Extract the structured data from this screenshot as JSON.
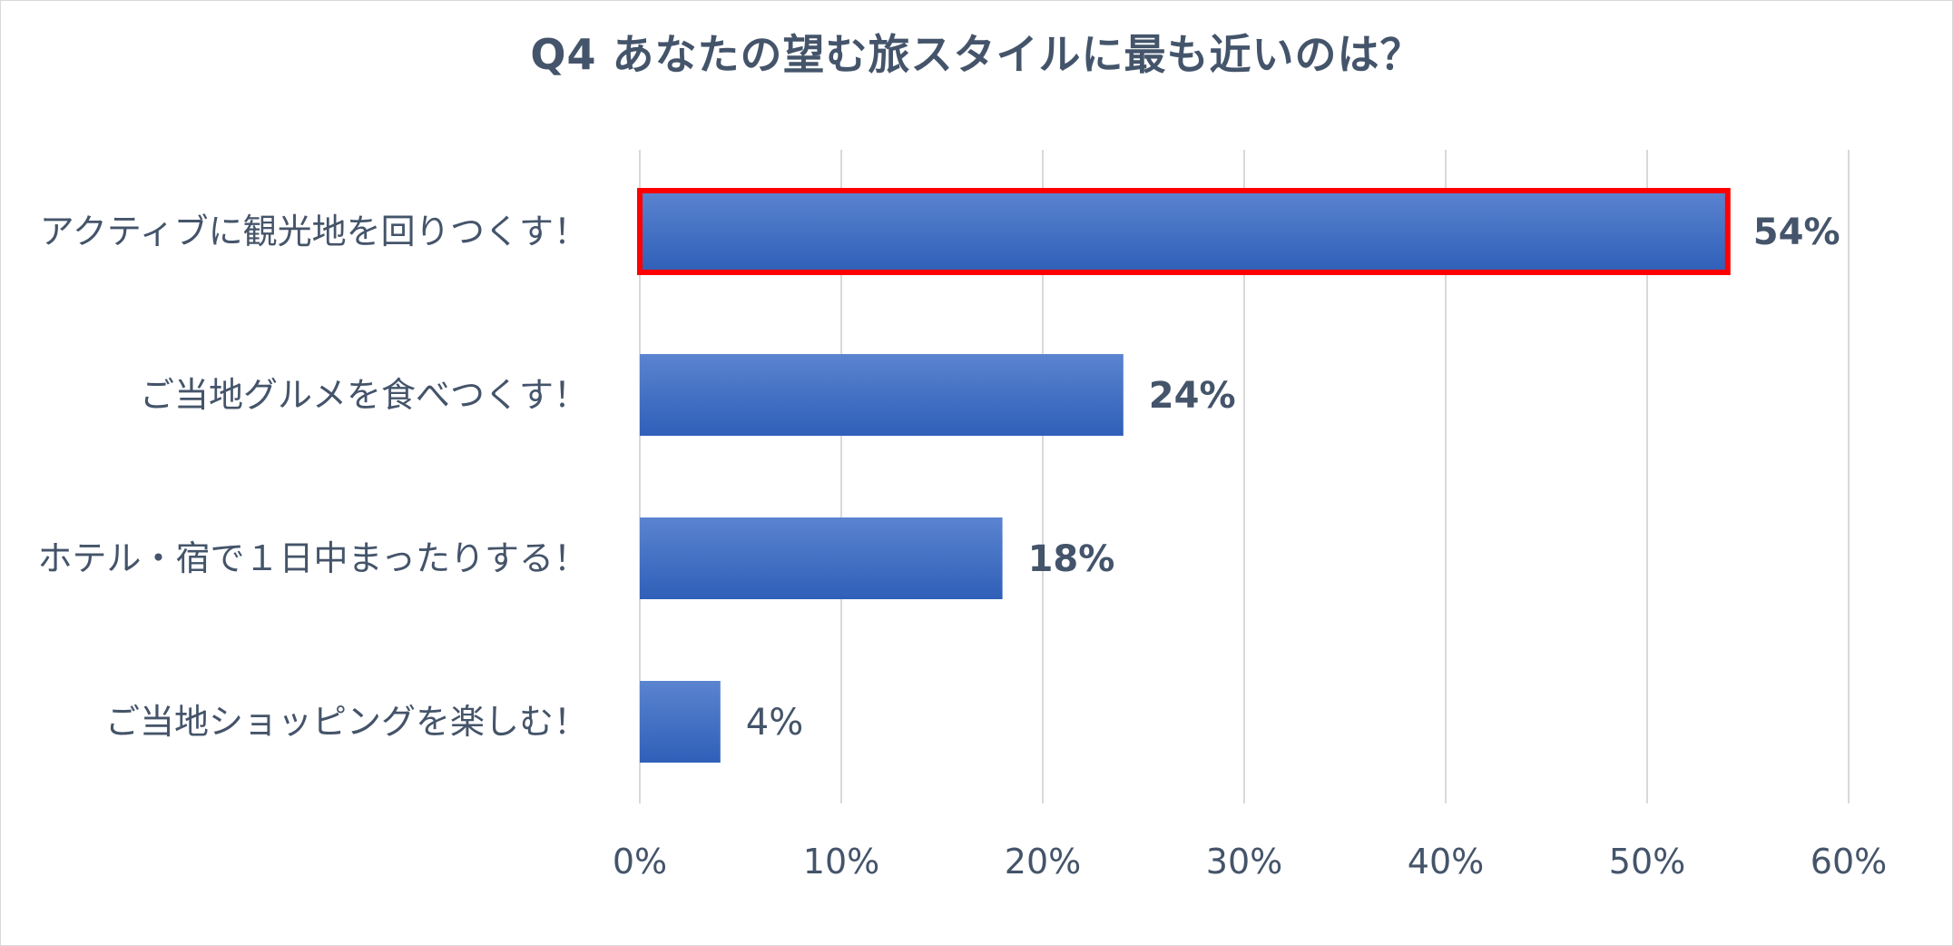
{
  "chart_data": {
    "type": "bar",
    "orientation": "horizontal",
    "title": "Q4 あなたの望む旅スタイルに最も近いのは？",
    "xlabel": "",
    "ylabel": "",
    "categories": [
      "アクティブに観光地を回りつくす！",
      "ご当地グルメを食べつくす！",
      "ホテル・宿で１日中まったりする！",
      "ご当地ショッピングを楽しむ！"
    ],
    "values": [
      54,
      24,
      18,
      4
    ],
    "data_labels": [
      "54%",
      "24%",
      "18%",
      "4%"
    ],
    "xlim": [
      0,
      60
    ],
    "xticks": [
      0,
      10,
      20,
      30,
      40,
      50,
      60
    ],
    "xtick_labels": [
      "0%",
      "10%",
      "20%",
      "30%",
      "40%",
      "50%",
      "60%"
    ],
    "grid": "vertical",
    "legend": "none",
    "highlight_index": 0,
    "colors": {
      "bar_top": "#5b84d0",
      "bar_bottom": "#2f5fb8",
      "highlight_border": "#ff0000",
      "highlight_label": "#ff0000",
      "text": "#44546a",
      "grid": "#d9d9d9"
    },
    "bold_labels": [
      true,
      true,
      true,
      false
    ]
  }
}
